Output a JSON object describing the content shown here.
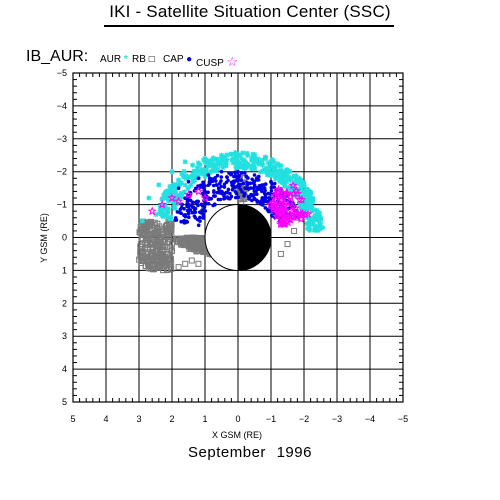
{
  "header": {
    "title": "IKI - Satellite Situation Center (SSC)",
    "series_label": "IB_AUR:"
  },
  "legend": [
    {
      "label": "AUR",
      "symbol": "*",
      "color": "#22e0e0"
    },
    {
      "label": "RB",
      "symbol": "□",
      "color": "#000000"
    },
    {
      "label": "CAP",
      "symbol": "●",
      "color": "#0000e0"
    },
    {
      "label": "CUSP",
      "symbol": "☆",
      "color": "#ff00ff"
    }
  ],
  "footer": {
    "caption": "September    1996"
  },
  "chart_data": {
    "type": "scatter",
    "xlabel": "X GSM (RE)",
    "ylabel": "Y GSM (RE)",
    "xlim": [
      5,
      -5
    ],
    "ylim": [
      -5,
      5
    ],
    "grid": true,
    "x_ticks": [
      "5",
      "4",
      "3",
      "2",
      "1",
      "0",
      "−1",
      "−2",
      "−3",
      "−4",
      "−5"
    ],
    "y_ticks": [
      "−5",
      "−4",
      "−3",
      "−2",
      "−1",
      "0",
      "1",
      "2",
      "3",
      "4",
      "5"
    ],
    "earth": {
      "center": [
        0,
        0
      ],
      "radius": 1,
      "night_side": "x<0"
    },
    "series": [
      {
        "name": "RB",
        "marker": "square",
        "color": "#7a7a7a",
        "region": {
          "type": "arc",
          "r": [
            1.05,
            1.9
          ],
          "theta_deg": [
            -100,
            5
          ],
          "min_x": 2.0,
          "x_band": [
            2.0,
            3.0
          ],
          "y_band": [
            -0.5,
            1.0
          ]
        },
        "x": [
          2.9,
          2.8,
          2.7,
          2.6,
          2.5,
          2.4,
          2.3,
          2.2,
          2.1,
          2.0,
          1.8,
          1.6,
          1.4,
          1.2,
          -1.3,
          -1.5,
          -1.7,
          -1.8
        ],
        "y": [
          0.2,
          0.5,
          0.7,
          0.8,
          0.6,
          0.9,
          0.5,
          0.8,
          0.7,
          0.4,
          0.9,
          0.8,
          0.7,
          0.8,
          0.5,
          0.2,
          -0.2,
          -0.6
        ]
      },
      {
        "name": "AUR",
        "marker": "asterisk",
        "color": "#22e0e0",
        "region": {
          "type": "arc",
          "r": [
            2.1,
            2.6
          ],
          "theta_deg": [
            15,
            175
          ]
        },
        "x": [
          2.9,
          2.7,
          2.4,
          2.0,
          1.6,
          1.0,
          0.5,
          0.0,
          -0.5,
          -1.0,
          -1.4,
          -1.7,
          -1.9
        ],
        "y": [
          -0.5,
          -1.2,
          -1.6,
          -2.0,
          -2.3,
          -2.4,
          -2.5,
          -2.5,
          -2.4,
          -2.3,
          -2.0,
          -1.6,
          -1.0
        ]
      },
      {
        "name": "CAP",
        "marker": "dot",
        "color": "#0000e0",
        "region": {
          "type": "arc",
          "r": [
            1.2,
            2.0
          ],
          "theta_deg": [
            15,
            160
          ]
        },
        "x": [
          1.8,
          1.5,
          1.2,
          0.9,
          0.5,
          0.0,
          -0.5,
          -1.0,
          -1.3,
          -1.6
        ],
        "y": [
          -1.5,
          -1.7,
          -1.8,
          -1.9,
          -2.0,
          -2.0,
          -1.9,
          -1.7,
          -1.4,
          -1.0
        ]
      },
      {
        "name": "CUSP",
        "marker": "star",
        "color": "#ff00ff",
        "region": {
          "type": "arc",
          "r": [
            1.3,
            2.3
          ],
          "theta_deg": [
            130,
            165
          ]
        },
        "x": [
          2.6,
          2.3,
          2.0,
          1.8,
          1.5,
          1.2,
          1.0
        ],
        "y": [
          -0.8,
          -1.0,
          -1.2,
          -1.1,
          -1.3,
          -1.4,
          -1.2
        ]
      }
    ]
  }
}
